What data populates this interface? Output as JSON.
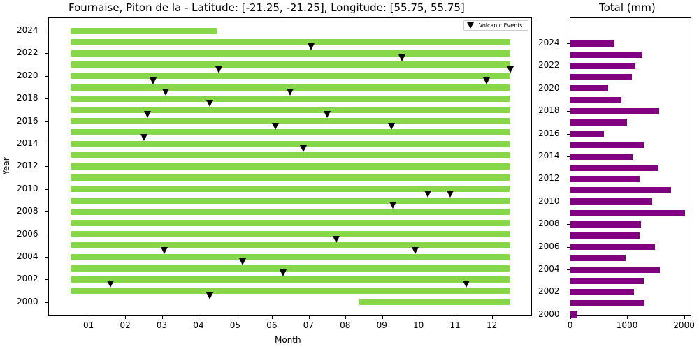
{
  "colors": {
    "timeline_bar": "#88d64a",
    "precip_bar": "#800080",
    "marker": "#000000"
  },
  "chart_data": [
    {
      "type": "scatter",
      "title": "Fournaise, Piton de la - Latitude: [-21.25, -21.25], Longitude: [55.75, 55.75]",
      "xlabel": "Month",
      "ylabel": "Year",
      "xticks": [
        "01",
        "02",
        "03",
        "04",
        "05",
        "06",
        "07",
        "08",
        "09",
        "10",
        "11",
        "12"
      ],
      "yticks": [
        "2000",
        "2002",
        "2004",
        "2006",
        "2008",
        "2010",
        "2012",
        "2014",
        "2016",
        "2018",
        "2020",
        "2022",
        "2024"
      ],
      "xlim": [
        0,
        13.2
      ],
      "ylim": [
        1998.8,
        2025.2
      ],
      "legend": {
        "label": "Volcanic Events",
        "position": "upper right"
      },
      "data_coverage": [
        {
          "year": 2024,
          "start": 0.5,
          "end": 4.5
        },
        {
          "year": 2023,
          "start": 0.5,
          "end": 12.5
        },
        {
          "year": 2022,
          "start": 0.5,
          "end": 12.5
        },
        {
          "year": 2021,
          "start": 0.5,
          "end": 12.5
        },
        {
          "year": 2020,
          "start": 0.5,
          "end": 12.5
        },
        {
          "year": 2019,
          "start": 0.5,
          "end": 12.5
        },
        {
          "year": 2018,
          "start": 0.5,
          "end": 12.5
        },
        {
          "year": 2017,
          "start": 0.5,
          "end": 12.5
        },
        {
          "year": 2016,
          "start": 0.5,
          "end": 12.5
        },
        {
          "year": 2015,
          "start": 0.5,
          "end": 12.5
        },
        {
          "year": 2014,
          "start": 0.5,
          "end": 12.5
        },
        {
          "year": 2013,
          "start": 0.5,
          "end": 12.5
        },
        {
          "year": 2012,
          "start": 0.5,
          "end": 12.5
        },
        {
          "year": 2011,
          "start": 0.5,
          "end": 12.5
        },
        {
          "year": 2010,
          "start": 0.5,
          "end": 12.5
        },
        {
          "year": 2009,
          "start": 0.5,
          "end": 12.5
        },
        {
          "year": 2008,
          "start": 0.5,
          "end": 12.5
        },
        {
          "year": 2007,
          "start": 0.5,
          "end": 12.5
        },
        {
          "year": 2006,
          "start": 0.5,
          "end": 12.5
        },
        {
          "year": 2005,
          "start": 0.5,
          "end": 12.5
        },
        {
          "year": 2004,
          "start": 0.5,
          "end": 12.5
        },
        {
          "year": 2003,
          "start": 0.5,
          "end": 12.5
        },
        {
          "year": 2002,
          "start": 0.5,
          "end": 12.5
        },
        {
          "year": 2001,
          "start": 0.5,
          "end": 12.5
        },
        {
          "year": 2000,
          "start": 8.35,
          "end": 12.5
        }
      ],
      "volcanic_events": [
        {
          "year": 2023,
          "month": 7.06
        },
        {
          "year": 2022,
          "month": 9.55
        },
        {
          "year": 2021,
          "month": 4.55
        },
        {
          "year": 2021,
          "month": 12.5
        },
        {
          "year": 2020,
          "month": 2.75
        },
        {
          "year": 2020,
          "month": 11.85
        },
        {
          "year": 2019,
          "month": 3.1
        },
        {
          "year": 2019,
          "month": 6.5
        },
        {
          "year": 2018,
          "month": 4.3
        },
        {
          "year": 2017,
          "month": 2.6
        },
        {
          "year": 2017,
          "month": 7.5
        },
        {
          "year": 2016,
          "month": 6.1
        },
        {
          "year": 2016,
          "month": 9.25
        },
        {
          "year": 2015,
          "month": 2.5
        },
        {
          "year": 2014,
          "month": 6.85
        },
        {
          "year": 2010,
          "month": 10.25
        },
        {
          "year": 2010,
          "month": 10.85
        },
        {
          "year": 2009,
          "month": 9.3
        },
        {
          "year": 2006,
          "month": 7.75
        },
        {
          "year": 2005,
          "month": 3.05
        },
        {
          "year": 2005,
          "month": 9.9
        },
        {
          "year": 2004,
          "month": 5.2
        },
        {
          "year": 2003,
          "month": 6.3
        },
        {
          "year": 2002,
          "month": 1.6
        },
        {
          "year": 2002,
          "month": 11.3
        },
        {
          "year": 2001,
          "month": 4.3
        }
      ]
    },
    {
      "type": "bar",
      "orientation": "horizontal",
      "title": "Total (mm)",
      "xlabel": "",
      "ylabel": "",
      "xticks": [
        "0",
        "1000",
        "2000"
      ],
      "yticks": [
        "2000",
        "2002",
        "2004",
        "2006",
        "2008",
        "2010",
        "2012",
        "2014",
        "2016",
        "2018",
        "2020",
        "2022",
        "2024"
      ],
      "xlim": [
        0,
        2120
      ],
      "categories": [
        2024,
        2023,
        2022,
        2021,
        2020,
        2019,
        2018,
        2017,
        2016,
        2015,
        2014,
        2013,
        2012,
        2011,
        2010,
        2009,
        2008,
        2007,
        2006,
        2005,
        2004,
        2003,
        2002,
        2001,
        2000
      ],
      "values": [
        780,
        1270,
        1145,
        1085,
        670,
        900,
        1565,
        1000,
        595,
        1295,
        1100,
        1550,
        1220,
        1775,
        1440,
        2015,
        1245,
        1220,
        1490,
        975,
        1575,
        1295,
        1120,
        1305,
        125
      ]
    }
  ]
}
